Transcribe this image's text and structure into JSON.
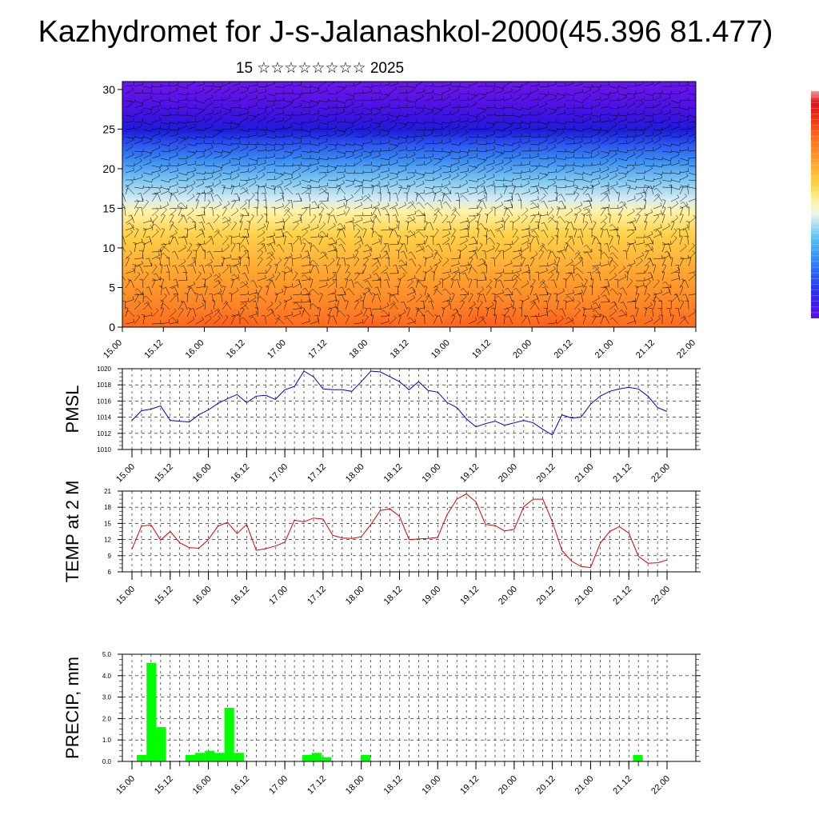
{
  "title": "Kazhydromet for J-s-Jalanashkol-2000(45.396 81.477)",
  "subtitle": "15 ☆☆☆☆☆☆☆☆ 2025",
  "time_labels": [
    "15.00",
    "15.12",
    "16.00",
    "16.12",
    "17.00",
    "17.12",
    "18.00",
    "18.12",
    "19.00",
    "19.12",
    "20.00",
    "20.12",
    "21.00",
    "21.12",
    "22.00"
  ],
  "colorbar": {
    "colors": [
      "#5a10e0",
      "#3a1ee8",
      "#2a3cf0",
      "#2d6af2",
      "#3d98f4",
      "#56c0f2",
      "#a8dcf0",
      "#eef4e8",
      "#fff2a0",
      "#ffd84a",
      "#ffb733",
      "#ff9128",
      "#ff6a1e",
      "#f23a16",
      "#d8121a",
      "#ef9a9a"
    ]
  },
  "chart_data": [
    {
      "type": "heatmap",
      "title": "",
      "xlabel": "",
      "ylabel": "",
      "x_labels": [
        "15.00",
        "15.12",
        "16.00",
        "16.12",
        "17.00",
        "17.12",
        "18.00",
        "18.12",
        "19.00",
        "19.12",
        "20.00",
        "20.12",
        "21.00",
        "21.12",
        "22.00"
      ],
      "ylim": [
        0,
        31
      ],
      "y_ticks": [
        0,
        5,
        10,
        15,
        20,
        25,
        30
      ],
      "overlay": "wind barbs"
    },
    {
      "type": "line",
      "ylabel": "PMSL",
      "ylim": [
        1010,
        1020
      ],
      "y_ticks": [
        1010,
        1012,
        1014,
        1016,
        1018,
        1020
      ],
      "color": "#0000cc",
      "x_labels": [
        "15.00",
        "15.12",
        "16.00",
        "16.12",
        "17.00",
        "17.12",
        "18.00",
        "18.12",
        "19.00",
        "19.12",
        "20.00",
        "20.12",
        "21.00",
        "21.12",
        "22.00"
      ],
      "values": [
        1013.6,
        1014.8,
        1015.0,
        1015.4,
        1013.6,
        1013.5,
        1013.4,
        1014.3,
        1014.9,
        1015.7,
        1016.3,
        1016.8,
        1015.8,
        1016.6,
        1016.7,
        1016.2,
        1017.4,
        1017.8,
        1019.7,
        1019.0,
        1017.5,
        1017.4,
        1017.4,
        1017.2,
        1018.4,
        1019.7,
        1019.6,
        1019.0,
        1018.4,
        1017.4,
        1018.4,
        1017.3,
        1017.1,
        1015.8,
        1015.2,
        1013.8,
        1012.8,
        1013.2,
        1013.5,
        1013.0,
        1013.3,
        1013.6,
        1013.3,
        1012.5,
        1011.8,
        1014.3,
        1013.9,
        1014.0,
        1015.6,
        1016.6,
        1017.2,
        1017.5,
        1017.7,
        1017.5,
        1016.6,
        1015.2,
        1014.7
      ]
    },
    {
      "type": "line",
      "ylabel": "TEMP at 2 M",
      "ylim": [
        6,
        21
      ],
      "y_ticks": [
        6,
        9,
        12,
        15,
        18,
        21
      ],
      "color": "#dd0000",
      "x_labels": [
        "15.00",
        "15.12",
        "16.00",
        "16.12",
        "17.00",
        "17.12",
        "18.00",
        "18.12",
        "19.00",
        "19.12",
        "20.00",
        "20.12",
        "21.00",
        "21.12",
        "22.00"
      ],
      "values": [
        10.2,
        14.5,
        14.7,
        11.9,
        13.5,
        11.4,
        10.5,
        10.4,
        12.0,
        14.5,
        15.2,
        13.1,
        14.8,
        10.0,
        10.3,
        10.8,
        11.5,
        15.6,
        15.3,
        16.0,
        15.8,
        12.8,
        12.3,
        12.2,
        12.5,
        14.8,
        17.4,
        17.7,
        16.3,
        12.0,
        12.1,
        12.2,
        12.4,
        16.7,
        19.5,
        20.5,
        19.0,
        14.8,
        14.6,
        13.6,
        13.9,
        18.1,
        19.5,
        19.5,
        15.3,
        10.0,
        8.0,
        7.0,
        6.8,
        11.3,
        13.5,
        14.4,
        13.2,
        8.9,
        7.6,
        7.7,
        8.2
      ]
    },
    {
      "type": "bar",
      "ylabel": "PRECIP, mm",
      "ylim": [
        0,
        5
      ],
      "y_ticks": [
        "0.0",
        "1.0",
        "2.0",
        "3.0",
        "4.0",
        "5.0"
      ],
      "color": "#00ff00",
      "x_labels": [
        "15.00",
        "15.12",
        "16.00",
        "16.12",
        "17.00",
        "17.12",
        "18.00",
        "18.12",
        "19.00",
        "19.12",
        "20.00",
        "20.12",
        "21.00",
        "21.12",
        "22.00"
      ],
      "values": [
        0,
        0.3,
        4.6,
        1.6,
        0,
        0,
        0.3,
        0.4,
        0.5,
        0.4,
        2.5,
        0.4,
        0,
        0,
        0,
        0,
        0,
        0,
        0.3,
        0.4,
        0.2,
        0,
        0,
        0,
        0.3,
        0,
        0,
        0,
        0,
        0,
        0,
        0,
        0,
        0,
        0,
        0,
        0,
        0,
        0,
        0,
        0,
        0,
        0,
        0,
        0,
        0,
        0,
        0,
        0,
        0,
        0,
        0,
        0.3,
        0,
        0,
        0
      ]
    }
  ]
}
